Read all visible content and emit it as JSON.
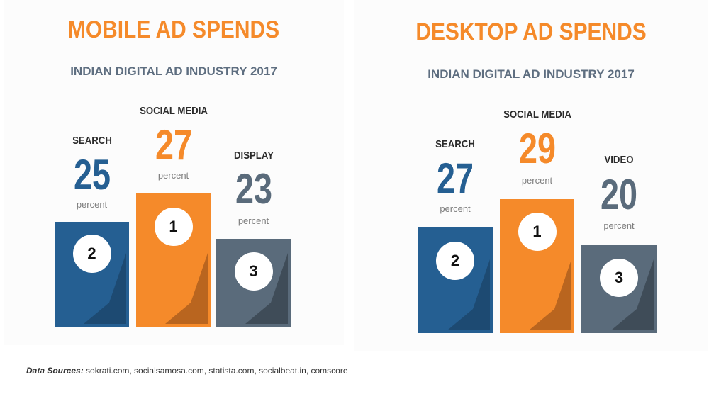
{
  "colors": {
    "orange": "#f58a2a",
    "blue": "#255f92",
    "gray": "#5a6b7b",
    "dark_blue": "#1d4a72",
    "dark_orange": "#b9651f",
    "dark_gray": "#3f4c58"
  },
  "chart_data": [
    {
      "type": "bar",
      "title": "MOBILE AD SPENDS",
      "subtitle": "INDIAN DIGITAL AD INDUSTRY 2017",
      "unit": "percent",
      "categories": [
        "SEARCH",
        "SOCIAL MEDIA",
        "DISPLAY"
      ],
      "values": [
        25,
        27,
        23
      ],
      "ranks": [
        "2",
        "1",
        "3"
      ],
      "colors": [
        "#255f92",
        "#f58a2a",
        "#5a6b7b"
      ]
    },
    {
      "type": "bar",
      "title": "DESKTOP AD SPENDS",
      "subtitle": "INDIAN DIGITAL AD INDUSTRY 2017",
      "unit": "percent",
      "categories": [
        "SEARCH",
        "SOCIAL MEDIA",
        "VIDEO"
      ],
      "values": [
        27,
        29,
        20
      ],
      "ranks": [
        "2",
        "1",
        "3"
      ],
      "colors": [
        "#255f92",
        "#f58a2a",
        "#5a6b7b"
      ]
    }
  ],
  "footer": {
    "label": "Data Sources:",
    "text": " sokrati.com, socialsamosa.com, statista.com, socialbeat.in, comscore"
  }
}
